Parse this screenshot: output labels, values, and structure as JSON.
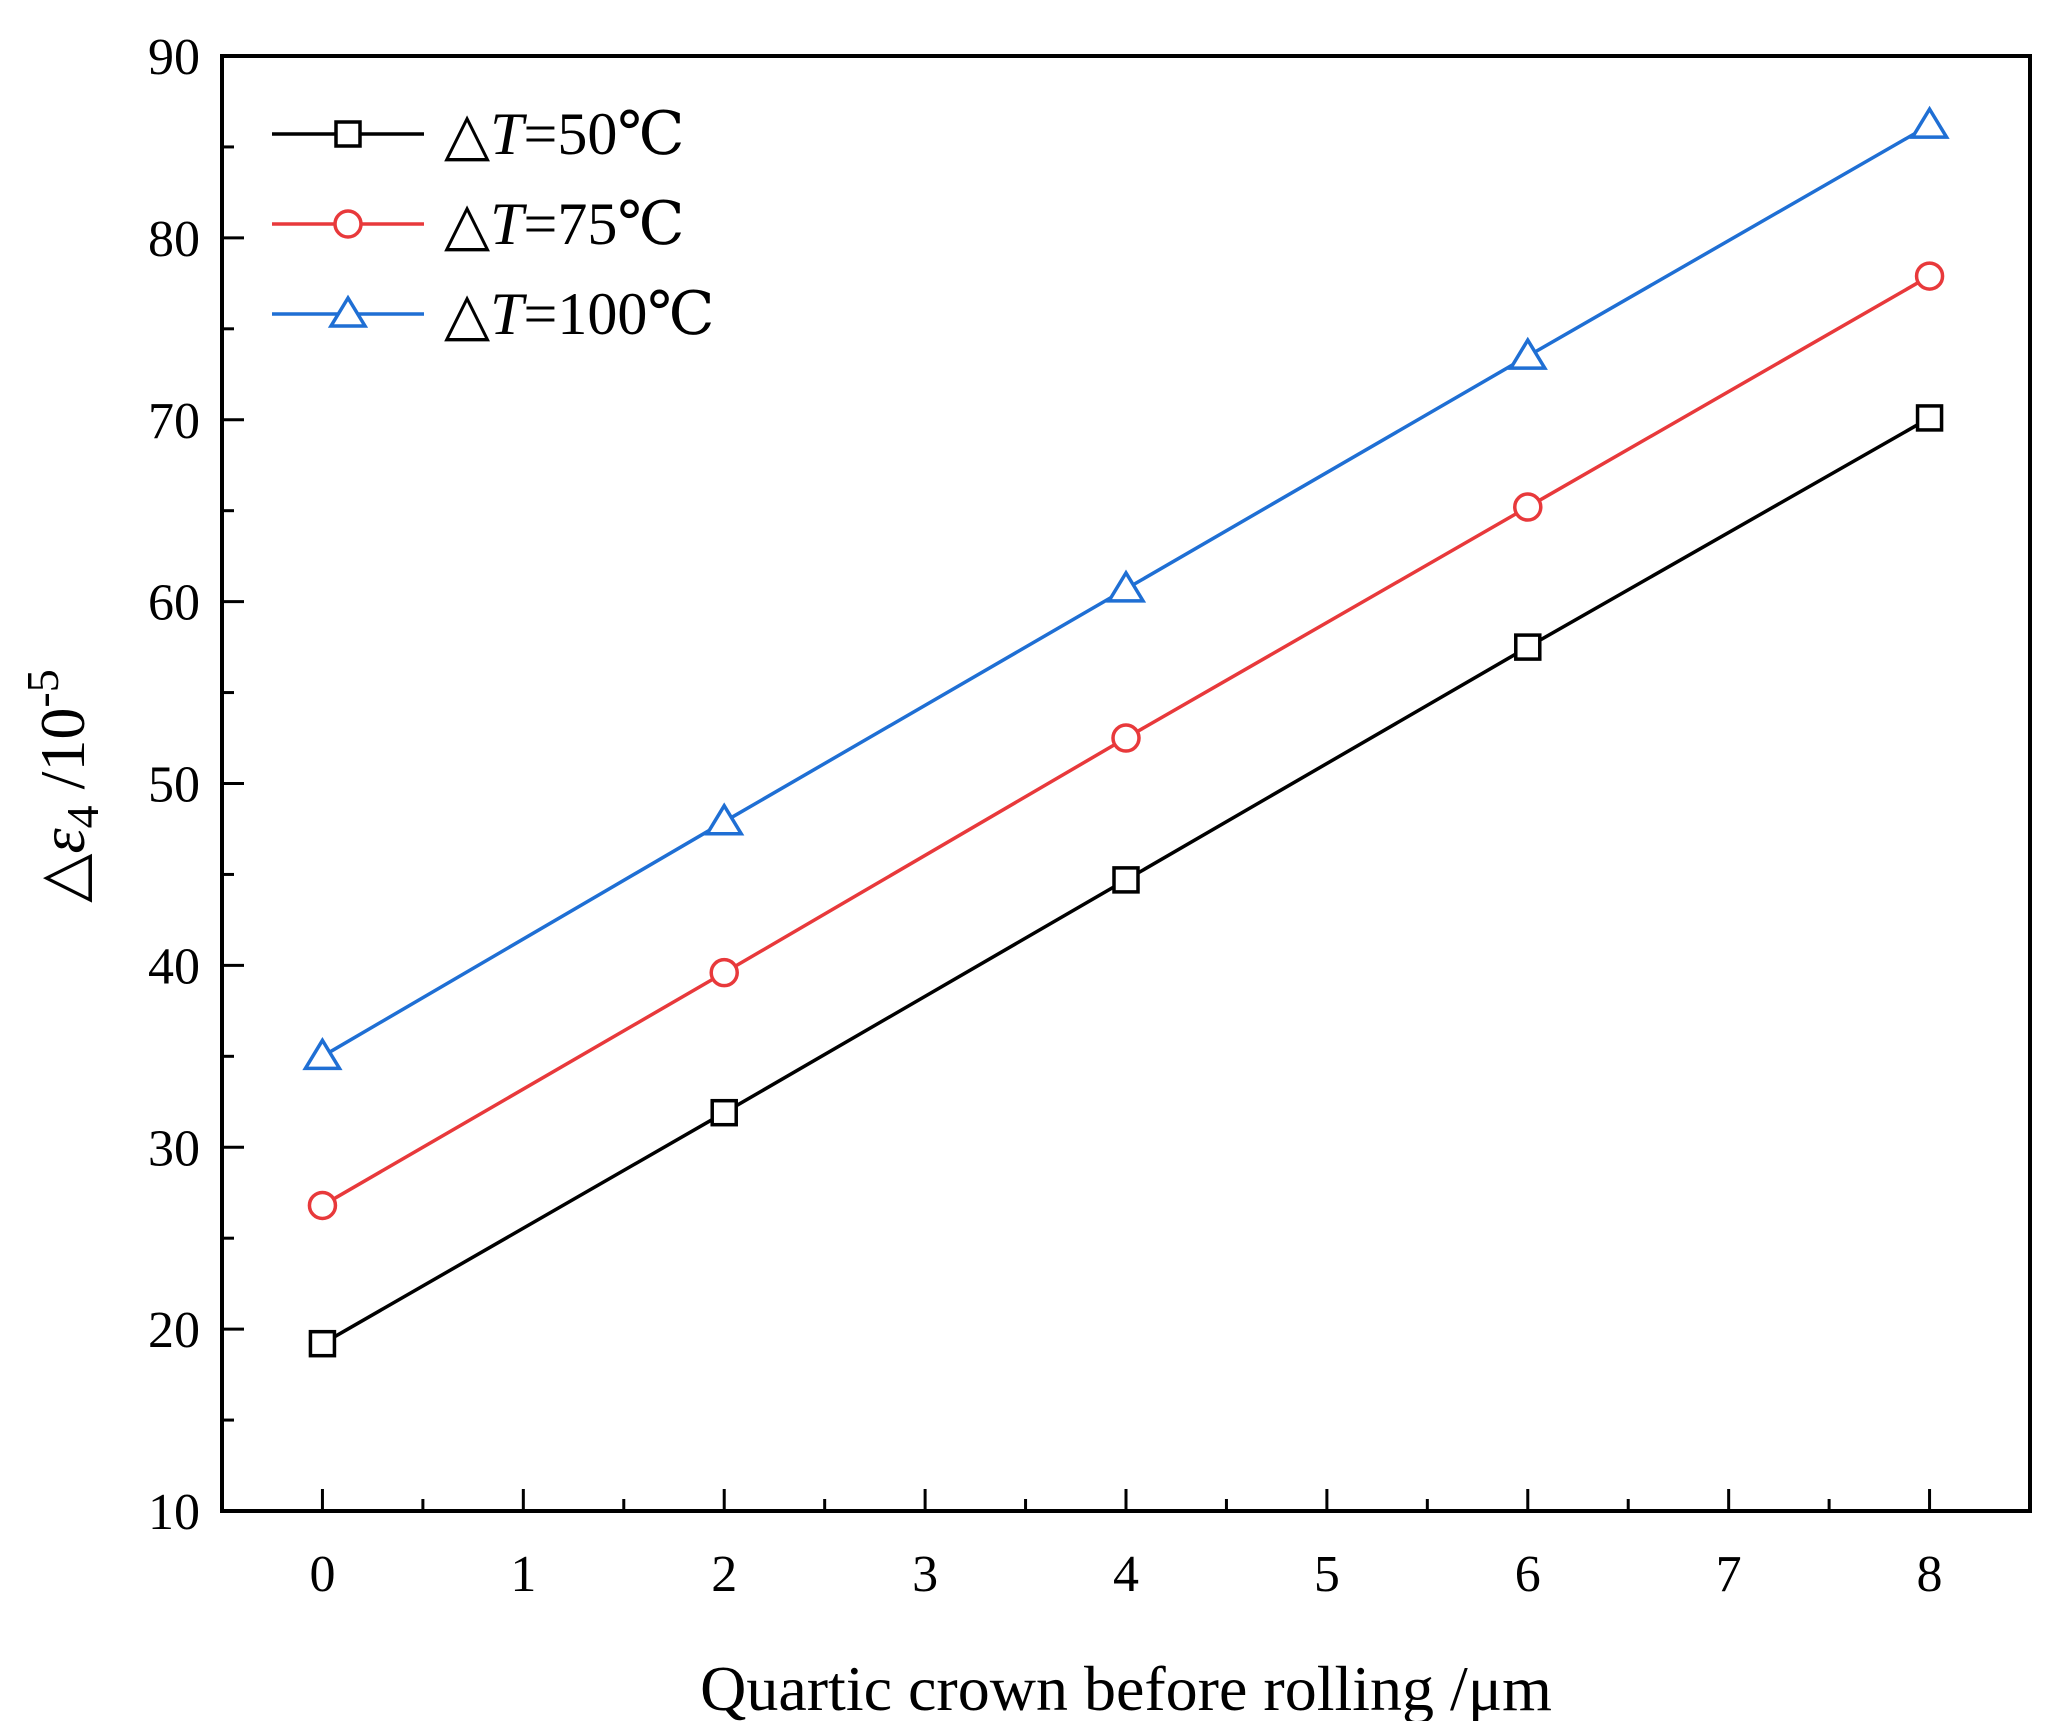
{
  "chart_data": {
    "type": "line",
    "title": "",
    "xlabel": "Quartic crown before rolling /μm",
    "ylabel": {
      "prefix": "△",
      "symbol": "ε",
      "subscript": "4",
      "unit": " /10",
      "superscript": "-5"
    },
    "xlim": [
      -0.5,
      8.5
    ],
    "ylim": [
      10,
      90
    ],
    "xticks": [
      0,
      1,
      2,
      3,
      4,
      5,
      6,
      7,
      8
    ],
    "yticks": [
      10,
      20,
      30,
      40,
      50,
      60,
      70,
      80,
      90
    ],
    "x": [
      0,
      2,
      4,
      6,
      8
    ],
    "legend_position": "top-left",
    "series": [
      {
        "name_prefix": "△",
        "name_var": "T",
        "name_value": "=50℃",
        "marker": "square",
        "color": "#000000",
        "values": [
          19.2,
          31.9,
          44.7,
          57.5,
          70.1
        ]
      },
      {
        "name_prefix": "△",
        "name_var": "T",
        "name_value": "=75℃",
        "marker": "circle",
        "color": "#e8393b",
        "values": [
          26.8,
          39.6,
          52.5,
          65.2,
          77.9
        ]
      },
      {
        "name_prefix": "△",
        "name_var": "T",
        "name_value": "=100℃",
        "marker": "triangle",
        "color": "#1f6fd4",
        "values": [
          35.0,
          47.9,
          60.7,
          73.5,
          86.2
        ]
      }
    ]
  }
}
